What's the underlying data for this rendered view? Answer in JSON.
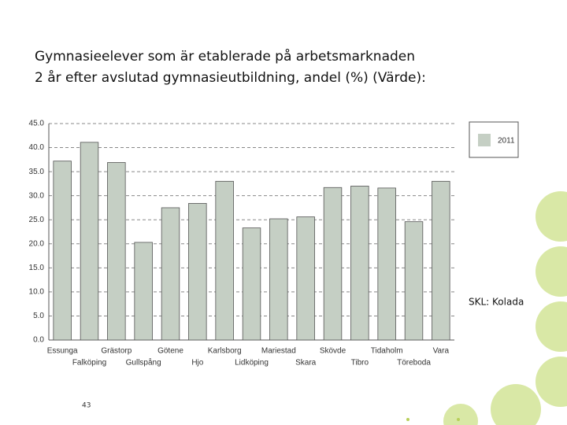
{
  "chart_data": {
    "type": "bar",
    "title": [
      "Gymnasieelever som är etablerade på arbetsmarknaden",
      "2 år efter avslutad gymnasieutbildning, andel (%) (Värde):"
    ],
    "categories": [
      "Essunga",
      "Falköping",
      "Grästorp",
      "Gullspång",
      "Götene",
      "Hjo",
      "Karlsborg",
      "Lidköping",
      "Mariestad",
      "Skara",
      "Skövde",
      "Tibro",
      "Tidaholm",
      "Töreboda",
      "Vara"
    ],
    "series": [
      {
        "name": "2011",
        "color": "#c5cfc4",
        "values": [
          37.2,
          41.1,
          36.9,
          20.3,
          27.5,
          28.4,
          33.0,
          23.3,
          25.2,
          25.6,
          31.7,
          32.0,
          31.6,
          24.6,
          33.0
        ]
      }
    ],
    "ylim": [
      0,
      45
    ],
    "yticks": [
      {
        "value": 0,
        "label": "0.0"
      },
      {
        "value": 5,
        "label": "5.0"
      },
      {
        "value": 10,
        "label": "10.0"
      },
      {
        "value": 15,
        "label": "15.0"
      },
      {
        "value": 20,
        "label": "20.0"
      },
      {
        "value": 25,
        "label": "25.0"
      },
      {
        "value": 30,
        "label": "30.0"
      },
      {
        "value": 35,
        "label": "35.0"
      },
      {
        "value": 40,
        "label": "40.0"
      },
      {
        "value": 45,
        "label": "45.0"
      }
    ],
    "grid": true,
    "legend": "right",
    "source": "SKL: Kolada"
  },
  "page_number": 43
}
